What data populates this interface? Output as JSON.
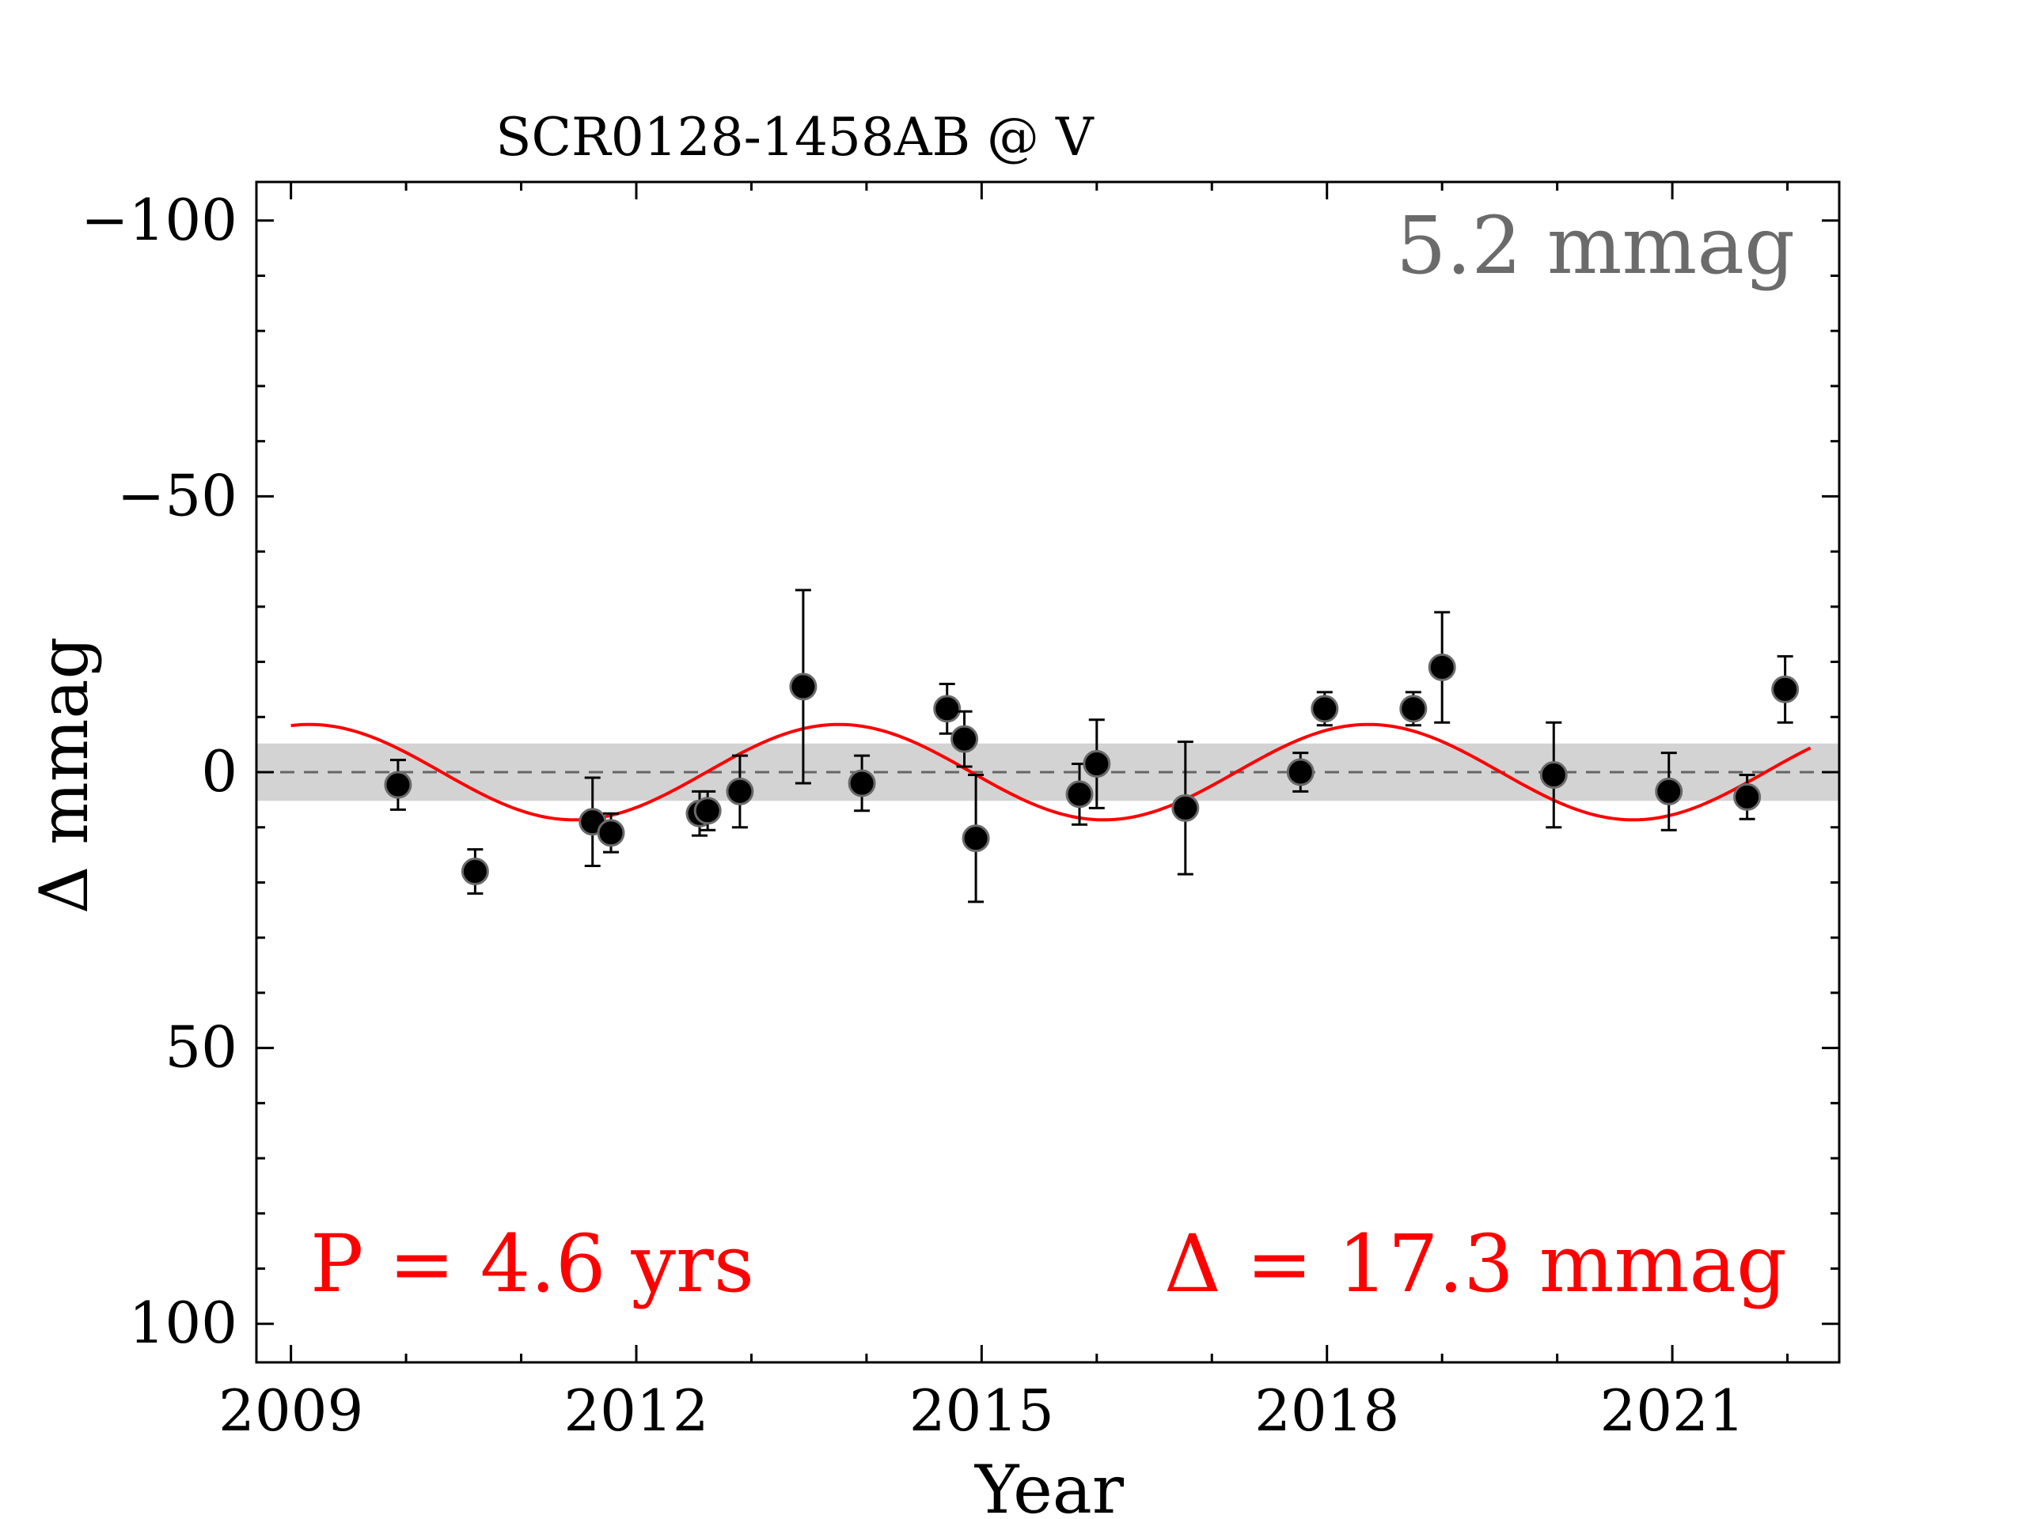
{
  "chart_data": {
    "type": "scatter",
    "title": "SCR0128-1458AB @ V",
    "xlabel": "Year",
    "ylabel": "Δ  mmag",
    "xlim": [
      2008.7,
      2022.45
    ],
    "ylim": [
      107,
      -107
    ],
    "y_inverted": true,
    "x_ticks": [
      2009,
      2012,
      2015,
      2018,
      2021
    ],
    "x_tick_labels": [
      "2009",
      "2012",
      "2015",
      "2018",
      "2021"
    ],
    "y_ticks": [
      -100,
      -50,
      0,
      50,
      100
    ],
    "y_tick_labels": [
      "−100",
      "−50",
      "0",
      "50",
      "100"
    ],
    "grid": false,
    "band": {
      "lower": -5.2,
      "upper": 5.2,
      "color": "#d3d3d3"
    },
    "zero_line_color": "#666666",
    "annotations": {
      "band_width": "5.2 mmag",
      "period": "P = 4.6 yrs",
      "amplitude": "Δ = 17.3 mmag"
    },
    "colors": {
      "fit": "#ff0000",
      "points": "#000000",
      "band_label": "#6b6b6b"
    },
    "fit": {
      "period_years": 4.6,
      "semi_amplitude": 8.65,
      "peak_epoch": 2013.76,
      "x_range": [
        2009.0,
        2022.2
      ]
    },
    "points": [
      {
        "x": 2009.93,
        "y": 2.3,
        "err": 4.5
      },
      {
        "x": 2010.6,
        "y": 18.0,
        "err": 4.0
      },
      {
        "x": 2011.62,
        "y": 9.0,
        "err": 8.0
      },
      {
        "x": 2011.78,
        "y": 11.0,
        "err": 3.5
      },
      {
        "x": 2012.55,
        "y": 7.5,
        "err": 4.0
      },
      {
        "x": 2012.62,
        "y": 7.0,
        "err": 3.5
      },
      {
        "x": 2012.9,
        "y": 3.5,
        "err": 6.5
      },
      {
        "x": 2013.45,
        "y": -15.5,
        "err": 17.5
      },
      {
        "x": 2013.96,
        "y": 2.0,
        "err": 5.0
      },
      {
        "x": 2014.7,
        "y": -11.5,
        "err": 4.5
      },
      {
        "x": 2014.85,
        "y": -6.0,
        "err": 5.0
      },
      {
        "x": 2014.95,
        "y": 12.0,
        "err": 11.5
      },
      {
        "x": 2015.85,
        "y": 4.0,
        "err": 5.5
      },
      {
        "x": 2016.0,
        "y": -1.5,
        "err": 8.0
      },
      {
        "x": 2016.77,
        "y": 6.5,
        "err": 12.0
      },
      {
        "x": 2017.77,
        "y": 0.0,
        "err": 3.5
      },
      {
        "x": 2017.98,
        "y": -11.5,
        "err": 3.0
      },
      {
        "x": 2018.75,
        "y": -11.5,
        "err": 3.0
      },
      {
        "x": 2019.0,
        "y": -19.0,
        "err": 10.0
      },
      {
        "x": 2019.97,
        "y": 0.5,
        "err": 9.5
      },
      {
        "x": 2020.97,
        "y": 3.5,
        "err": 7.0
      },
      {
        "x": 2021.65,
        "y": 4.5,
        "err": 4.0
      },
      {
        "x": 2021.98,
        "y": -15.0,
        "err": 6.0
      }
    ]
  }
}
